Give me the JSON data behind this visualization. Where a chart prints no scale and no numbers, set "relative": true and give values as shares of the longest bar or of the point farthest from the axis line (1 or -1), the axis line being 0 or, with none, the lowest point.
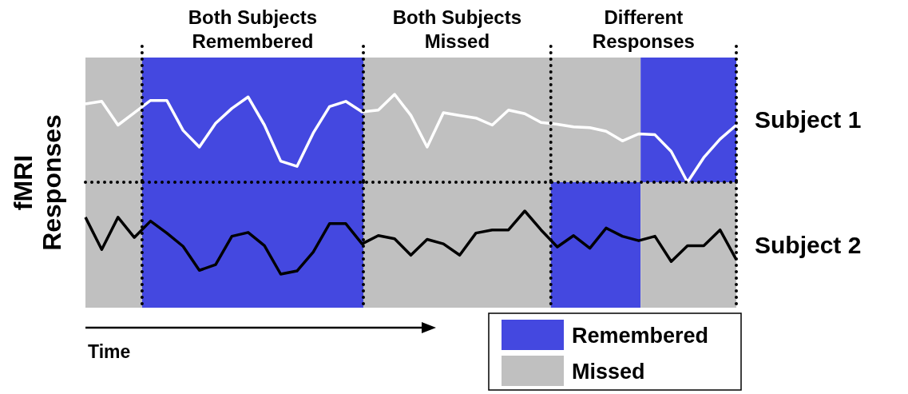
{
  "chart_data": [
    {
      "type": "line",
      "relative": true,
      "ylabel": "fMRI Responses",
      "tick_labels": false,
      "categories": [
        null,
        null,
        null,
        null,
        null,
        null,
        null,
        null,
        null,
        null,
        null,
        null,
        null,
        null,
        null,
        null,
        null,
        null,
        null,
        null,
        null,
        null,
        null,
        null,
        null,
        null,
        null,
        null,
        null,
        null,
        null,
        null,
        null,
        null,
        null,
        null,
        null,
        null,
        null,
        null,
        null
      ],
      "annotations": [
        "Both Subjects Remembered",
        "Both Subjects Missed",
        "Different Responses"
      ],
      "series": [
        {
          "name": "Subject 1",
          "color": "#ffffff",
          "values": [
            0.89,
            0.92,
            0.65,
            0.79,
            0.93,
            0.93,
            0.59,
            0.4,
            0.67,
            0.84,
            0.97,
            0.65,
            0.24,
            0.18,
            0.56,
            0.86,
            0.92,
            0.8,
            0.82,
            1.0,
            0.76,
            0.4,
            0.79,
            0.76,
            0.73,
            0.65,
            0.82,
            0.78,
            0.68,
            0.66,
            0.63,
            0.62,
            0.58,
            0.47,
            0.55,
            0.54,
            0.35,
            0.0,
            0.28,
            0.49,
            0.65
          ]
        }
      ]
    },
    {
      "type": "line",
      "relative": true,
      "xlabel": "Time",
      "tick_labels": false,
      "categories": [
        null,
        null,
        null,
        null,
        null,
        null,
        null,
        null,
        null,
        null,
        null,
        null,
        null,
        null,
        null,
        null,
        null,
        null,
        null,
        null,
        null,
        null,
        null,
        null,
        null,
        null,
        null,
        null,
        null,
        null,
        null,
        null,
        null,
        null,
        null,
        null,
        null,
        null,
        null,
        null,
        null
      ],
      "annotations": [
        "Remembered",
        "Missed"
      ],
      "series": [
        {
          "name": "Subject 2",
          "color": "#000000",
          "values": [
            0.9,
            0.39,
            0.9,
            0.58,
            0.84,
            0.65,
            0.44,
            0.06,
            0.15,
            0.6,
            0.66,
            0.45,
            0.0,
            0.05,
            0.35,
            0.8,
            0.8,
            0.48,
            0.61,
            0.56,
            0.3,
            0.55,
            0.48,
            0.3,
            0.65,
            0.7,
            0.7,
            1.0,
            0.7,
            0.43,
            0.61,
            0.41,
            0.73,
            0.6,
            0.53,
            0.6,
            0.2,
            0.45,
            0.45,
            0.7,
            0.23
          ]
        }
      ]
    }
  ]
}
